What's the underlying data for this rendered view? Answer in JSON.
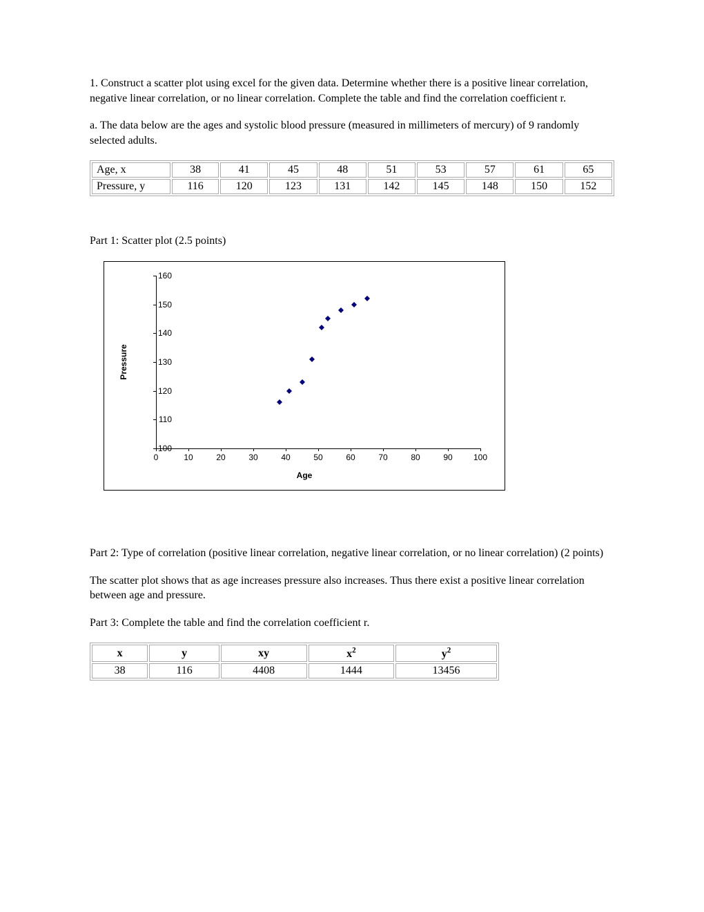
{
  "question": {
    "intro": "1. Construct a scatter plot using excel for the given data. Determine whether there is a positive linear correlation, negative linear correlation, or no linear correlation. Complete the table and find the correlation coefficient r.",
    "part_a": "a. The data below are the ages and systolic blood pressure (measured in millimeters of mercury) of 9 randomly selected adults."
  },
  "data_table": {
    "row1_label": "Age, x",
    "row1": [
      "38",
      "41",
      "45",
      "48",
      "51",
      "53",
      "57",
      "61",
      "65"
    ],
    "row2_label": "Pressure, y",
    "row2": [
      "116",
      "120",
      "123",
      "131",
      "142",
      "145",
      "148",
      "150",
      "152"
    ]
  },
  "part1_title": "Part 1: Scatter plot (2.5 points)",
  "scatter": {
    "type": "scatter",
    "xlabel": "Age",
    "ylabel": "Pressure",
    "xlim": [
      0,
      100
    ],
    "ylim": [
      100,
      160
    ],
    "xtick_step": 10,
    "ytick_step": 10,
    "xticks": [
      0,
      10,
      20,
      30,
      40,
      50,
      60,
      70,
      80,
      90,
      100
    ],
    "yticks": [
      100,
      110,
      120,
      130,
      140,
      150,
      160
    ],
    "marker_color": "#000080",
    "marker_shape": "diamond",
    "marker_size": 8,
    "background_color": "#ffffff",
    "border_color": "#000000",
    "axis_font": "Arial",
    "tick_fontsize": 12,
    "label_fontsize": 12,
    "label_fontweight": "bold",
    "points": [
      {
        "x": 38,
        "y": 116
      },
      {
        "x": 41,
        "y": 120
      },
      {
        "x": 45,
        "y": 123
      },
      {
        "x": 48,
        "y": 131
      },
      {
        "x": 51,
        "y": 142
      },
      {
        "x": 53,
        "y": 145
      },
      {
        "x": 57,
        "y": 148
      },
      {
        "x": 61,
        "y": 150
      },
      {
        "x": 65,
        "y": 152
      }
    ]
  },
  "part2_title": "Part 2: Type of correlation (positive linear correlation, negative linear correlation, or no linear correlation) (2 points)",
  "part2_answer": "The scatter plot shows that as age increases pressure also increases. Thus there exist a positive linear correlation between age and pressure.",
  "part3_title": "Part 3: Complete the table and find the correlation coefficient r.",
  "stats_table": {
    "columns": [
      "x",
      "y",
      "xy",
      "x2",
      "y2"
    ],
    "column_headers_html": [
      "x",
      "y",
      "xy",
      "x<sup>2</sup>",
      "y<sup>2</sup>"
    ],
    "rows": [
      [
        "38",
        "116",
        "4408",
        "1444",
        "13456"
      ]
    ]
  }
}
